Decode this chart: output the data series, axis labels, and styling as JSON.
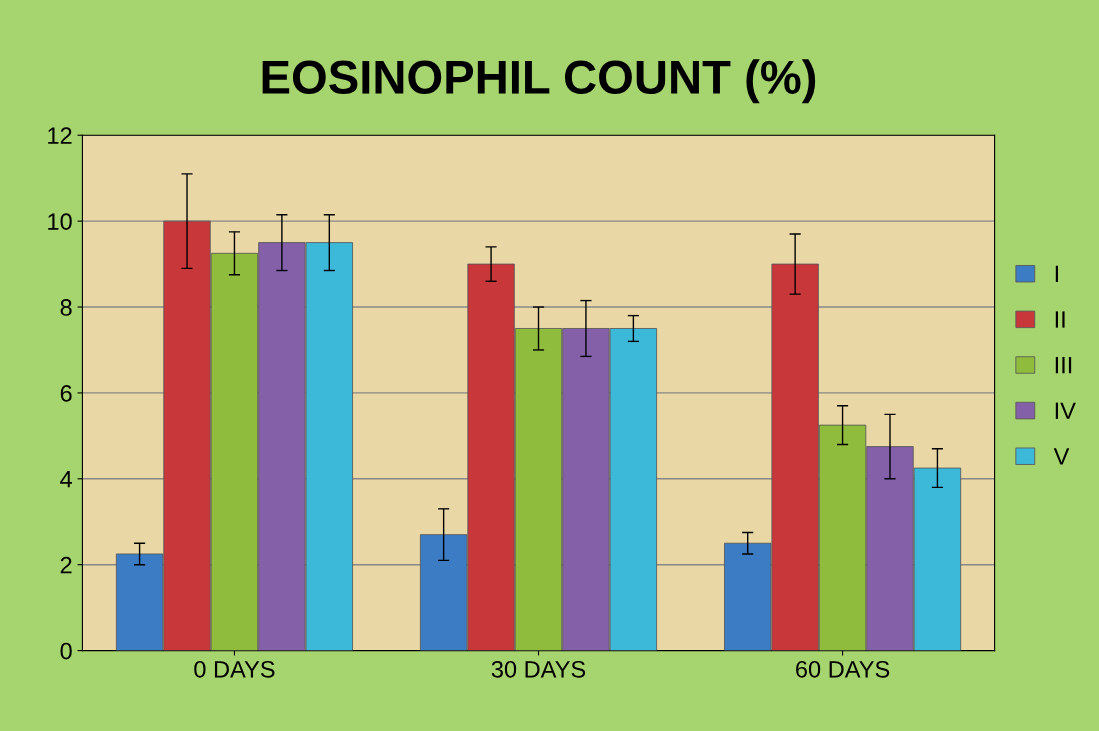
{
  "chart_data": {
    "type": "bar",
    "title": "EOSINOPHIL COUNT (%)",
    "categories": [
      "0 DAYS",
      "30 DAYS",
      "60 DAYS"
    ],
    "series": [
      {
        "name": "I",
        "color": "#3c7cc4",
        "values": [
          2.25,
          2.7,
          2.5
        ],
        "errors": [
          0.25,
          0.6,
          0.25
        ]
      },
      {
        "name": "II",
        "color": "#c8373a",
        "values": [
          10,
          9,
          9
        ],
        "errors": [
          1.1,
          0.4,
          0.7
        ]
      },
      {
        "name": "III",
        "color": "#8fbc3c",
        "values": [
          9.25,
          7.5,
          5.25
        ],
        "errors": [
          0.5,
          0.5,
          0.45
        ]
      },
      {
        "name": "IV",
        "color": "#8460a8",
        "values": [
          9.5,
          7.5,
          4.75
        ],
        "errors": [
          0.65,
          0.65,
          0.75
        ]
      },
      {
        "name": "V",
        "color": "#3cb8d8",
        "values": [
          9.5,
          7.5,
          4.25
        ],
        "errors": [
          0.65,
          0.3,
          0.45
        ]
      }
    ],
    "ylim": [
      0,
      12
    ],
    "yticks": [
      0,
      2,
      4,
      6,
      8,
      10,
      12
    ],
    "grid": "y",
    "legend": "right"
  }
}
